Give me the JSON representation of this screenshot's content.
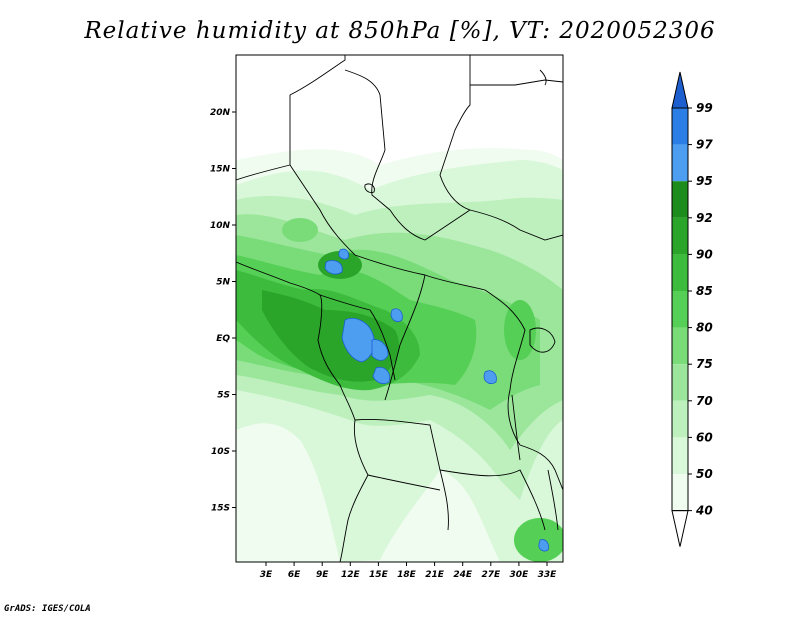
{
  "title": "Relative humidity at 850hPa [%], VT: 2020052306",
  "credit": "GrADS: IGES/COLA",
  "map": {
    "lat_ticks": [
      "20N",
      "15N",
      "10N",
      "5N",
      "EQ",
      "5S",
      "10S",
      "15S"
    ],
    "lat_values": [
      20,
      15,
      10,
      5,
      0,
      -5,
      -10,
      -15
    ],
    "lon_ticks": [
      "3E",
      "6E",
      "9E",
      "12E",
      "15E",
      "18E",
      "21E",
      "24E",
      "27E",
      "30E",
      "33E"
    ],
    "lon_values": [
      3,
      6,
      9,
      12,
      15,
      18,
      21,
      24,
      27,
      30,
      33
    ]
  },
  "colorbar": {
    "labels": [
      "99",
      "97",
      "95",
      "92",
      "90",
      "85",
      "80",
      "75",
      "70",
      "60",
      "50",
      "40"
    ],
    "colors": [
      "#1e5fd0",
      "#2b7ee6",
      "#4d9ef0",
      "#1c8c1c",
      "#2aa52a",
      "#3dbb3d",
      "#55cf55",
      "#79dc79",
      "#9be69b",
      "#bdf0bd",
      "#d9f7d9",
      "#f0fcf0"
    ]
  }
}
